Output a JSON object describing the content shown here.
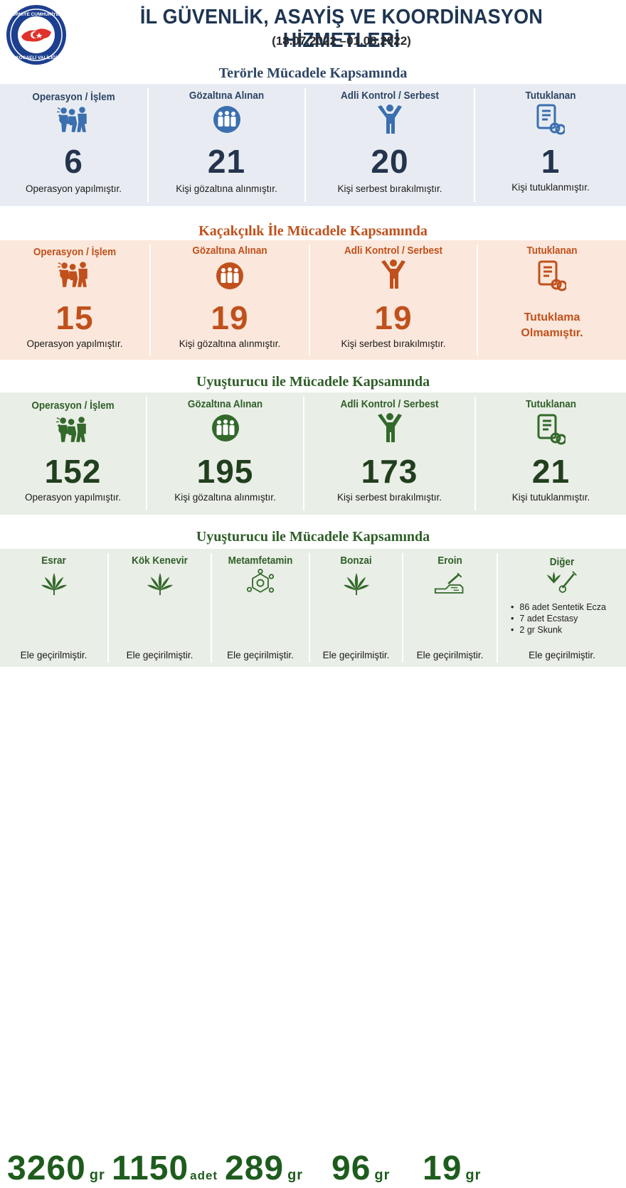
{
  "header": {
    "title": "İL GÜVENLİK, ASAYİŞ VE KOORDİNASYON HİZMETLERİ",
    "date_range": "(18.07.2022 –01.08.2022)",
    "logo_top": "TÜRKİYE CUMHURİYETİ",
    "logo_bottom": "KOCAELİ VALİLİĞİ"
  },
  "colors": {
    "terror_bg": "#e8ecf2",
    "terror_accent": "#3b6fb0",
    "terror_num": "#24344d",
    "smuggling_bg": "#fbe7db",
    "smuggling_accent": "#c0501c",
    "drugs_bg": "#e9eee6",
    "drugs_accent": "#33692b",
    "drugs_num": "#213f1e"
  },
  "terror": {
    "title": "Terörle Mücadele Kapsamında",
    "cells": [
      {
        "label": "Operasyon / İşlem",
        "icon": "operation-icon",
        "value": "6",
        "desc": "Operasyon yapılmıştır."
      },
      {
        "label": "Gözaltına Alınan",
        "icon": "detained-icon",
        "value": "21",
        "desc": "Kişi gözaltına alınmıştır."
      },
      {
        "label": "Adli Kontrol / Serbest",
        "icon": "released-person-icon",
        "value": "20",
        "desc": "Kişi serbest bırakılmıştır."
      },
      {
        "label": "Tutuklanan",
        "icon": "arrest-document-icon",
        "value": "1",
        "desc": "Kişi tutuklanmıştır."
      }
    ]
  },
  "smuggling": {
    "title": "Kaçakçılık  İle Mücadele Kapsamında",
    "cells": [
      {
        "label": "Operasyon / İşlem",
        "icon": "operation-icon",
        "value": "15",
        "desc": "Operasyon yapılmıştır."
      },
      {
        "label": "Gözaltına Alınan",
        "icon": "detained-icon",
        "value": "19",
        "desc": "Kişi gözaltına alınmıştır."
      },
      {
        "label": "Adli Kontrol / Serbest",
        "icon": "released-person-icon",
        "value": "19",
        "desc": "Kişi serbest bırakılmıştır."
      },
      {
        "label": "Tutuklanan",
        "icon": "arrest-document-icon",
        "value_line1": "Tutuklama",
        "value_line2": "Olmamıştır."
      }
    ]
  },
  "drugs": {
    "title": "Uyuşturucu ile  Mücadele Kapsamında",
    "cells": [
      {
        "label": "Operasyon / İşlem",
        "icon": "operation-icon",
        "value": "152",
        "desc": "Operasyon yapılmıştır."
      },
      {
        "label": "Gözaltına Alınan",
        "icon": "detained-icon",
        "value": "195",
        "desc": "Kişi gözaltına alınmıştır."
      },
      {
        "label": "Adli Kontrol / Serbest",
        "icon": "released-person-icon",
        "value": "173",
        "desc": "Kişi serbest bırakılmıştır."
      },
      {
        "label": "Tutuklanan",
        "icon": "arrest-document-icon",
        "value": "21",
        "desc": "Kişi tutuklanmıştır."
      }
    ]
  },
  "seizures": {
    "title": "Uyuşturucu ile  Mücadele Kapsamında",
    "cells": [
      {
        "label": "Esrar",
        "icon": "cannabis-leaf-icon",
        "value": "3260",
        "unit": "gr",
        "desc": "Ele geçirilmiştir."
      },
      {
        "label": "Kök Kenevir",
        "icon": "cannabis-leaf-icon",
        "value": "1150",
        "unit": "adet",
        "desc": "Ele geçirilmiştir."
      },
      {
        "label": "Metamfetamin",
        "icon": "molecule-icon",
        "value": "289",
        "unit": "gr",
        "desc": "Ele geçirilmiştir."
      },
      {
        "label": "Bonzai",
        "icon": "cannabis-leaf-icon",
        "value": "96",
        "unit": "gr",
        "desc": "Ele geçirilmiştir."
      },
      {
        "label": "Eroin",
        "icon": "syringe-hand-icon",
        "value": "19",
        "unit": "gr",
        "desc": "Ele geçirilmiştir."
      },
      {
        "label": "Diğer",
        "icon": "drugs-syringe-icon",
        "items": [
          "86 adet Sentetik Ecza",
          "7 adet Ecstasy",
          "2 gr Skunk"
        ],
        "desc": "Ele geçirilmiştir."
      }
    ]
  }
}
